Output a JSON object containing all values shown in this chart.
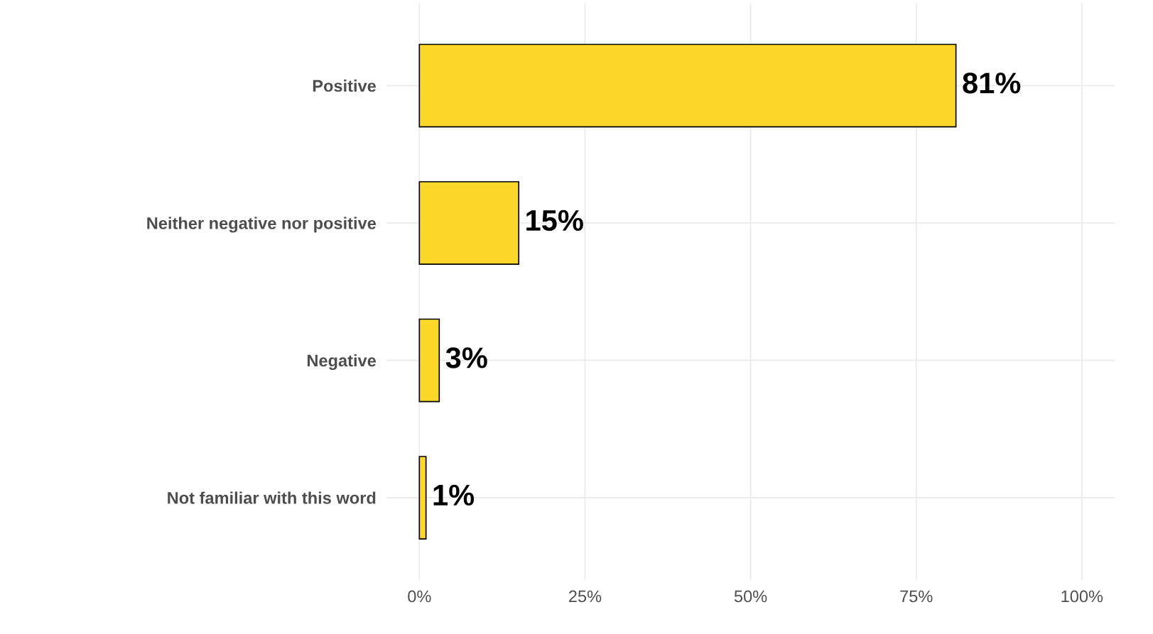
{
  "chart_data": {
    "type": "bar",
    "orientation": "horizontal",
    "categories": [
      "Positive",
      "Neither negative nor positive",
      "Negative",
      "Not familiar with this word"
    ],
    "values": [
      81,
      15,
      3,
      1
    ],
    "value_labels": [
      "81%",
      "15%",
      "3%",
      "1%"
    ],
    "color": "#fdd72a",
    "xlim": [
      -5,
      105
    ],
    "xticks": [
      {
        "value": 0,
        "label": "0%"
      },
      {
        "value": 25,
        "label": "25%"
      },
      {
        "value": 50,
        "label": "50%"
      },
      {
        "value": 75,
        "label": "75%"
      },
      {
        "value": 100,
        "label": "100%"
      }
    ],
    "grid": true
  }
}
